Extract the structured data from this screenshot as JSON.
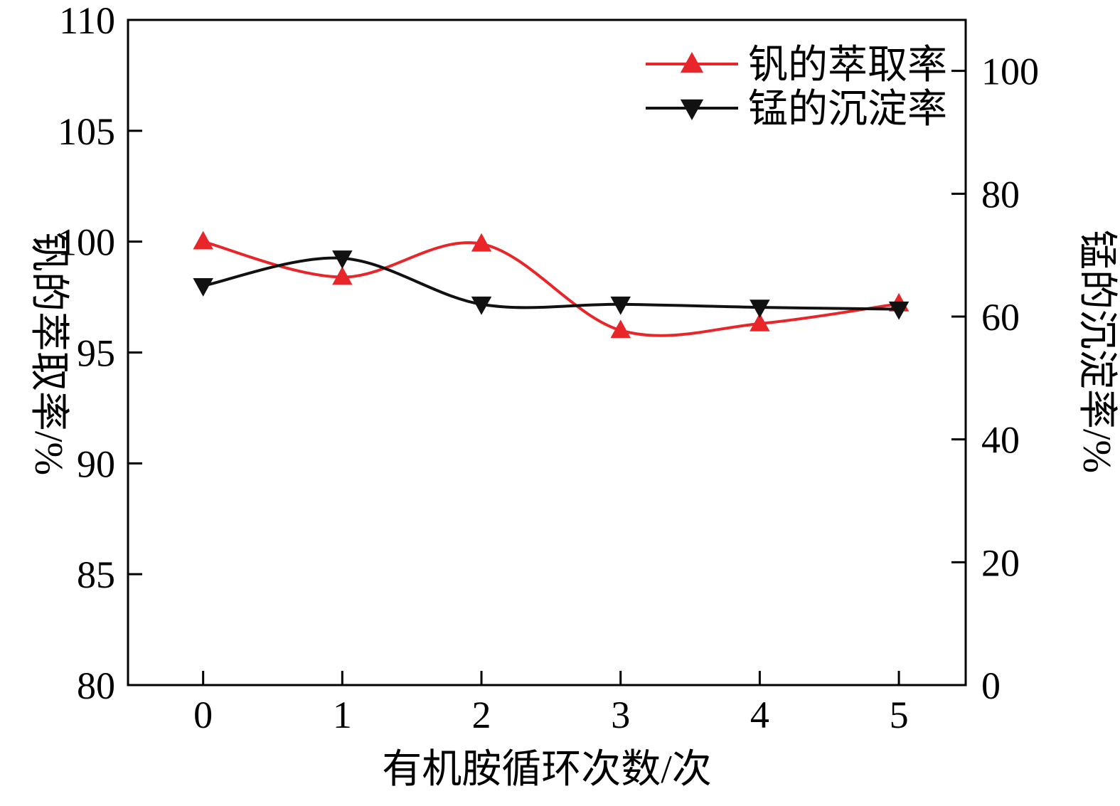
{
  "figure": {
    "background": "#ffffff",
    "frame_color": "#000000"
  },
  "chart_data": {
    "type": "line",
    "title": "",
    "xlabel": "有机胺循环次数/次",
    "ylabel_left": "钒的萃取率/%",
    "ylabel_right": "锰的沉淀率/%",
    "x_ticks": [
      "0",
      "1",
      "2",
      "3",
      "4",
      "5"
    ],
    "x_tick_values": [
      0,
      1,
      2,
      3,
      4,
      5
    ],
    "xlim": [
      -0.54,
      5.48
    ],
    "left_ticks": [
      80,
      85,
      90,
      95,
      100,
      105,
      110
    ],
    "left_lim": [
      80,
      110
    ],
    "right_ticks": [
      0,
      20,
      40,
      60,
      80,
      100
    ],
    "right_lim": [
      0,
      108.3
    ],
    "grid": false,
    "legend_position": "top-right-inside",
    "series": [
      {
        "name": "钒的萃取率",
        "axis": "left",
        "color": "#e8262a",
        "marker": "triangle-up",
        "x": [
          0,
          1,
          2,
          3,
          4,
          5
        ],
        "values": [
          100.0,
          98.4,
          99.9,
          96.0,
          96.3,
          97.2
        ]
      },
      {
        "name": "锰的沉淀率",
        "axis": "right",
        "color": "#111111",
        "marker": "triangle-down",
        "x": [
          0,
          1,
          2,
          3,
          4,
          5
        ],
        "values": [
          65.0,
          69.5,
          62.0,
          62.0,
          61.5,
          61.2
        ]
      }
    ]
  }
}
